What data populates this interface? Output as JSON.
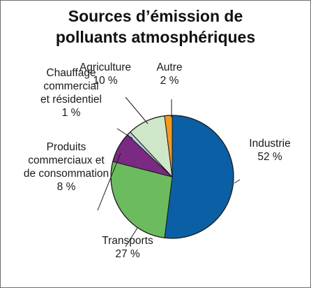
{
  "chart_data": {
    "type": "pie",
    "title_lines": [
      "Sources d’émission de",
      "polluants atmosphériques"
    ],
    "slices": [
      {
        "label_lines": [
          "Industrie",
          "52 %"
        ],
        "value": 52,
        "color": "#0b5fa5"
      },
      {
        "label_lines": [
          "Transports",
          "27 %"
        ],
        "value": 27,
        "color": "#6dbb5f"
      },
      {
        "label_lines": [
          "Produits",
          "commerciaux et",
          "de consommation",
          "8 %"
        ],
        "value": 8,
        "color": "#7a2a83"
      },
      {
        "label_lines": [
          "Chauffage",
          "commercial",
          "et résidentiel",
          "1 %"
        ],
        "value": 1,
        "color": "#b7d0e0"
      },
      {
        "label_lines": [
          "Agriculture",
          "10 %"
        ],
        "value": 10,
        "color": "#cfe6c9"
      },
      {
        "label_lines": [
          "Autre",
          "2 %"
        ],
        "value": 2,
        "color": "#f39a1e"
      }
    ]
  }
}
